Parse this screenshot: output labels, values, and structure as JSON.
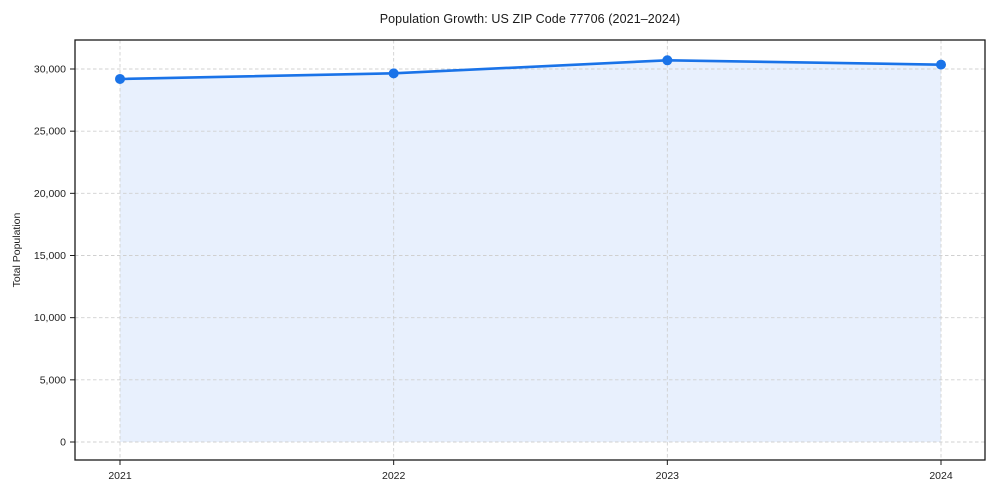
{
  "chart_data": {
    "type": "area",
    "title": "Population Growth: US ZIP Code 77706 (2021–2024)",
    "xlabel": "",
    "ylabel": "Total Population",
    "categories": [
      "2021",
      "2022",
      "2023",
      "2024"
    ],
    "values": [
      29200,
      29650,
      30700,
      30350
    ],
    "yticks": [
      0,
      5000,
      10000,
      15000,
      20000,
      25000,
      30000
    ],
    "ylim": [
      0,
      32500
    ],
    "grid": true,
    "grid_style": "dashed",
    "legend": "none",
    "marker": "circle",
    "line_color": "#1a73e8",
    "fill_color": "#e8f0fd",
    "grid_color": "#d0d0d0",
    "axis_color": "#1a1a1a",
    "text_color": "#222222"
  }
}
